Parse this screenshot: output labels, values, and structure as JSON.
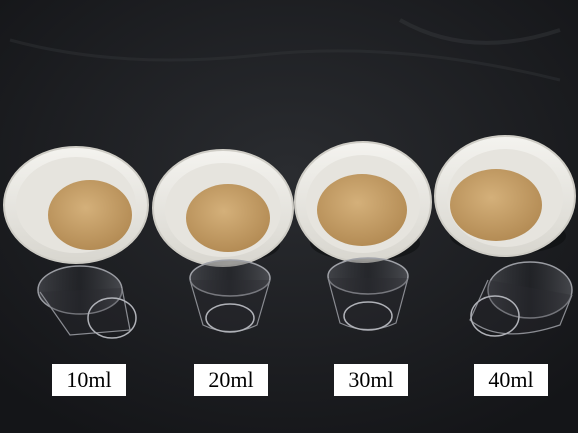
{
  "labels": [
    "10ml",
    "20ml",
    "30ml",
    "40ml"
  ],
  "colors": {
    "table": "#1b1c1f",
    "bowl": "#ecebe6",
    "sand": "#c7a16a",
    "label_background": "#ffffff"
  },
  "objects": {
    "bowls": 4,
    "cups": 4
  }
}
